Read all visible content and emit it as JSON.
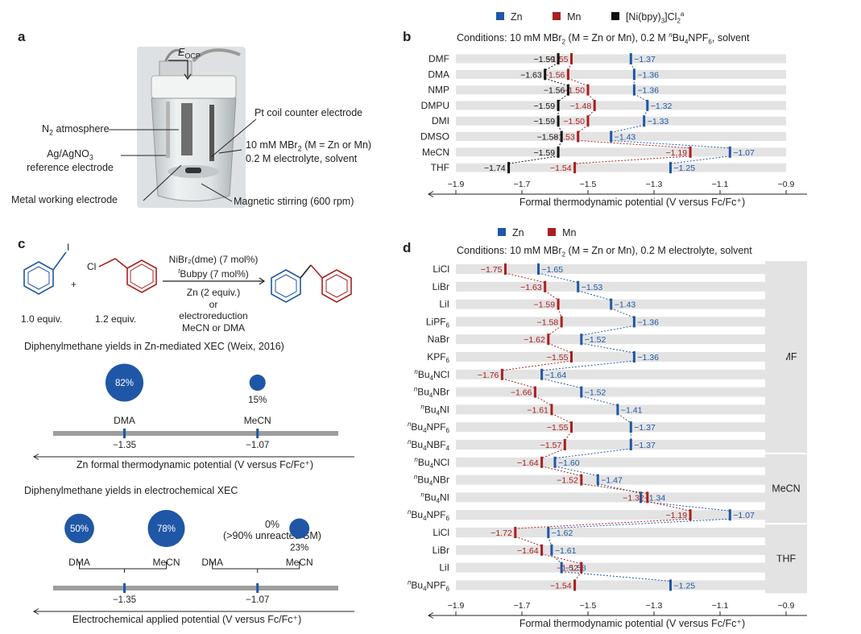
{
  "colors": {
    "zn": "#1f57a6",
    "mn": "#a8201e",
    "ni": "#111111",
    "row_bg": "#e3e3e3",
    "axis": "#222222",
    "conn_zn": "#1f57a6",
    "conn_mn": "#a8201e",
    "conn_ni": "#111111",
    "bubble": "#1f57a6",
    "bar": "#9e9e9e"
  },
  "panel_a": {
    "label": "a",
    "eocp_main": "E",
    "eocp_sub": "OCP",
    "n2_main": "N",
    "n2_sub": "2",
    "n2_rest": " atmosphere",
    "ref_line1": "Ag/AgNO",
    "ref_sub": "3",
    "ref_line2": "reference electrode",
    "metal": "Metal working electrode",
    "pt": "Pt coil counter electrode",
    "cond1_a": "10 mM MBr",
    "cond1_sub": "2",
    "cond1_b": " (M = Zn or Mn)",
    "cond2": "0.2 M electrolyte, solvent",
    "stir": "Magnetic stirring (600 rpm)"
  },
  "panel_b": {
    "label": "b",
    "legend": [
      {
        "key": "zn",
        "text": "Zn"
      },
      {
        "key": "mn",
        "text": "Mn"
      },
      {
        "key": "ni",
        "text": "[Ni(bpy)",
        "sub": "3",
        "rest": "]Cl",
        "sub2": "2",
        "sup": "a"
      }
    ],
    "conditions": "Conditions: 10 mM MBr",
    "conditions_sub": "2",
    "conditions_b": " (M = Zn or Mn), 0.2 M ",
    "conditions_sup": "n",
    "conditions_c": "Bu",
    "conditions_sub2": "4",
    "conditions_d": "NPF",
    "conditions_sub3": "6",
    "conditions_e": ", solvent",
    "xlabel": "Formal thermodynamic potential (V versus Fc/Fc⁺)"
  },
  "panel_c": {
    "label": "c",
    "reagent_i": "I",
    "reagent_cl": "Cl",
    "plus": "+",
    "equiv1": "1.0 equiv.",
    "equiv2": "1.2 equiv.",
    "cond_line1": "NiBr₂(dme) (7 mol%)",
    "cond_line2_sup": "t",
    "cond_line2": "Bubpy (7 mol%)",
    "cond_line3": "Zn (2 equiv.)",
    "cond_line4": "or",
    "cond_line5": "electroreduction",
    "cond_line6": "MeCN or DMA",
    "title1": "Diphenylmethane yields in Zn-mediated XEC (Weix, 2016)",
    "axis1_label": "Zn formal thermodynamic potential (V versus Fc/Fc⁺)",
    "title2": "Diphenylmethane yields in electrochemical XEC",
    "axis2_label": "Electrochemical applied potential (V versus Fc/Fc⁺)",
    "note_0": "0%",
    "note_unreacted": "(>90% unreacted SM)"
  },
  "panel_d": {
    "label": "d",
    "legend": [
      {
        "key": "zn",
        "text": "Zn"
      },
      {
        "key": "mn",
        "text": "Mn"
      }
    ],
    "conditions": "Conditions: 10 mM MBr",
    "conditions_sub": "2",
    "conditions_b": " (M = Zn or Mn), 0.2 M electrolyte, solvent",
    "xlabel": "Formal thermodynamic potential (V versus Fc/Fc⁺)"
  },
  "chart_data": [
    {
      "id": "b",
      "type": "dot-strip",
      "xlabel": "Formal thermodynamic potential (V versus Fc/Fc⁺)",
      "xlim": [
        -1.9,
        -0.9
      ],
      "xticks": [
        -1.9,
        -1.7,
        -1.5,
        -1.3,
        -1.1,
        -0.9
      ],
      "xtick_labels": [
        "−1.9",
        "−1.7",
        "−1.5",
        "−1.3",
        "−1.1",
        "−0.9"
      ],
      "categories": [
        "DMF",
        "DMA",
        "NMP",
        "DMPU",
        "DMI",
        "DMSO",
        "MeCN",
        "THF"
      ],
      "series": [
        {
          "name": "Zn",
          "key": "zn",
          "values": [
            -1.37,
            -1.36,
            -1.36,
            -1.32,
            -1.33,
            -1.43,
            -1.07,
            -1.25
          ]
        },
        {
          "name": "Mn",
          "key": "mn",
          "values": [
            -1.55,
            -1.56,
            -1.5,
            -1.48,
            -1.5,
            -1.53,
            -1.19,
            -1.54
          ]
        },
        {
          "name": "[Ni(bpy)3]Cl2",
          "key": "ni",
          "values": [
            -1.59,
            -1.63,
            -1.56,
            -1.59,
            -1.59,
            -1.58,
            -1.59,
            -1.74
          ]
        }
      ],
      "value_labels": {
        "zn": [
          "−1.37",
          "−1.36",
          "−1.36",
          "−1.32",
          "−1.33",
          "−1.43",
          "−1.07",
          "−1.25"
        ],
        "mn": [
          "−1.55",
          "−1.56",
          "−1.50",
          "−1.48",
          "−1.50",
          "−1.53",
          "−1.19",
          "−1.54"
        ],
        "ni": [
          "−1.59",
          "−1.63",
          "−1.56",
          "−1.59",
          "−1.59",
          "−1.58",
          "−1.59",
          "−1.74"
        ]
      }
    },
    {
      "id": "d",
      "type": "dot-strip",
      "xlabel": "Formal thermodynamic potential (V versus Fc/Fc⁺)",
      "xlim": [
        -1.9,
        -0.9
      ],
      "xticks": [
        -1.9,
        -1.7,
        -1.5,
        -1.3,
        -1.1,
        -0.9
      ],
      "xtick_labels": [
        "−1.9",
        "−1.7",
        "−1.5",
        "−1.3",
        "−1.1",
        "−0.9"
      ],
      "groups": [
        {
          "name": "DMF",
          "count": 11
        },
        {
          "name": "MeCN",
          "count": 4
        },
        {
          "name": "THF",
          "count": 4
        }
      ],
      "categories": [
        {
          "pre": "",
          "main": "LiCl",
          "sub": ""
        },
        {
          "pre": "",
          "main": "LiBr",
          "sub": ""
        },
        {
          "pre": "",
          "main": "LiI",
          "sub": ""
        },
        {
          "pre": "",
          "main": "LiPF",
          "sub": "6"
        },
        {
          "pre": "",
          "main": "NaBr",
          "sub": ""
        },
        {
          "pre": "",
          "main": "KPF",
          "sub": "6"
        },
        {
          "pre": "n",
          "main": "Bu",
          "sub": "4",
          "rest": "NCl"
        },
        {
          "pre": "n",
          "main": "Bu",
          "sub": "4",
          "rest": "NBr"
        },
        {
          "pre": "n",
          "main": "Bu",
          "sub": "4",
          "rest": "NI"
        },
        {
          "pre": "n",
          "main": "Bu",
          "sub": "4",
          "rest": "NPF",
          "sub2": "6"
        },
        {
          "pre": "n",
          "main": "Bu",
          "sub": "4",
          "rest": "NBF",
          "sub2": "4"
        },
        {
          "pre": "n",
          "main": "Bu",
          "sub": "4",
          "rest": "NCl"
        },
        {
          "pre": "n",
          "main": "Bu",
          "sub": "4",
          "rest": "NBr"
        },
        {
          "pre": "n",
          "main": "Bu",
          "sub": "4",
          "rest": "NI"
        },
        {
          "pre": "n",
          "main": "Bu",
          "sub": "4",
          "rest": "NPF",
          "sub2": "6"
        },
        {
          "pre": "",
          "main": "LiCl",
          "sub": ""
        },
        {
          "pre": "",
          "main": "LiBr",
          "sub": ""
        },
        {
          "pre": "",
          "main": "LiI",
          "sub": ""
        },
        {
          "pre": "n",
          "main": "Bu",
          "sub": "4",
          "rest": "NPF",
          "sub2": "6"
        }
      ],
      "series": [
        {
          "name": "Zn",
          "key": "zn",
          "values": [
            -1.65,
            -1.53,
            -1.43,
            -1.36,
            -1.52,
            -1.36,
            -1.64,
            -1.52,
            -1.41,
            -1.37,
            -1.37,
            -1.6,
            -1.47,
            -1.34,
            -1.07,
            -1.62,
            -1.61,
            -1.58,
            -1.25
          ]
        },
        {
          "name": "Mn",
          "key": "mn",
          "values": [
            -1.75,
            -1.63,
            -1.59,
            -1.58,
            -1.62,
            -1.55,
            -1.76,
            -1.66,
            -1.61,
            -1.55,
            -1.57,
            -1.64,
            -1.52,
            -1.32,
            -1.19,
            -1.72,
            -1.64,
            -1.52,
            -1.54
          ]
        }
      ],
      "value_labels": {
        "zn": [
          "−1.65",
          "−1.53",
          "−1.43",
          "−1.36",
          "−1.52",
          "−1.36",
          "−1.64",
          "−1.52",
          "−1.41",
          "−1.37",
          "−1.37",
          "−1.60",
          "−1.47",
          "−1.34",
          "−1.07",
          "−1.62",
          "−1.61",
          "−1.58",
          "−1.25"
        ],
        "mn": [
          "−1.75",
          "−1.63",
          "−1.59",
          "−1.58",
          "−1.62",
          "−1.55",
          "−1.76",
          "−1.66",
          "−1.61",
          "−1.55",
          "−1.57",
          "−1.64",
          "−1.52",
          "−1.32",
          "−1.19",
          "−1.72",
          "−1.64",
          "−1.52",
          "−1.54"
        ]
      }
    },
    {
      "id": "c-zn",
      "type": "bubble",
      "xlim": [
        -1.5,
        -0.9
      ],
      "points": [
        {
          "solvent": "DMA",
          "x": -1.35,
          "yield": 82,
          "label": "82%"
        },
        {
          "solvent": "MeCN",
          "x": -1.07,
          "yield": 15,
          "label": "15%"
        }
      ],
      "tick_labels": [
        "−1.35",
        "−1.07"
      ],
      "xlabel": "Zn formal thermodynamic potential (V versus Fc/Fc⁺)"
    },
    {
      "id": "c-electro",
      "type": "bubble",
      "xlim": [
        -1.5,
        -0.9
      ],
      "groups": [
        {
          "x": -1.35,
          "tick_label": "−1.35",
          "points": [
            {
              "solvent": "DMA",
              "yield": 50,
              "label": "50%"
            },
            {
              "solvent": "MeCN",
              "yield": 78,
              "label": "78%"
            }
          ]
        },
        {
          "x": -1.07,
          "tick_label": "−1.07",
          "points": [
            {
              "solvent": "DMA",
              "yield": 0,
              "label": "0%"
            },
            {
              "solvent": "MeCN",
              "yield": 23,
              "label": "23%"
            }
          ]
        }
      ],
      "xlabel": "Electrochemical applied potential (V versus Fc/Fc⁺)"
    }
  ]
}
